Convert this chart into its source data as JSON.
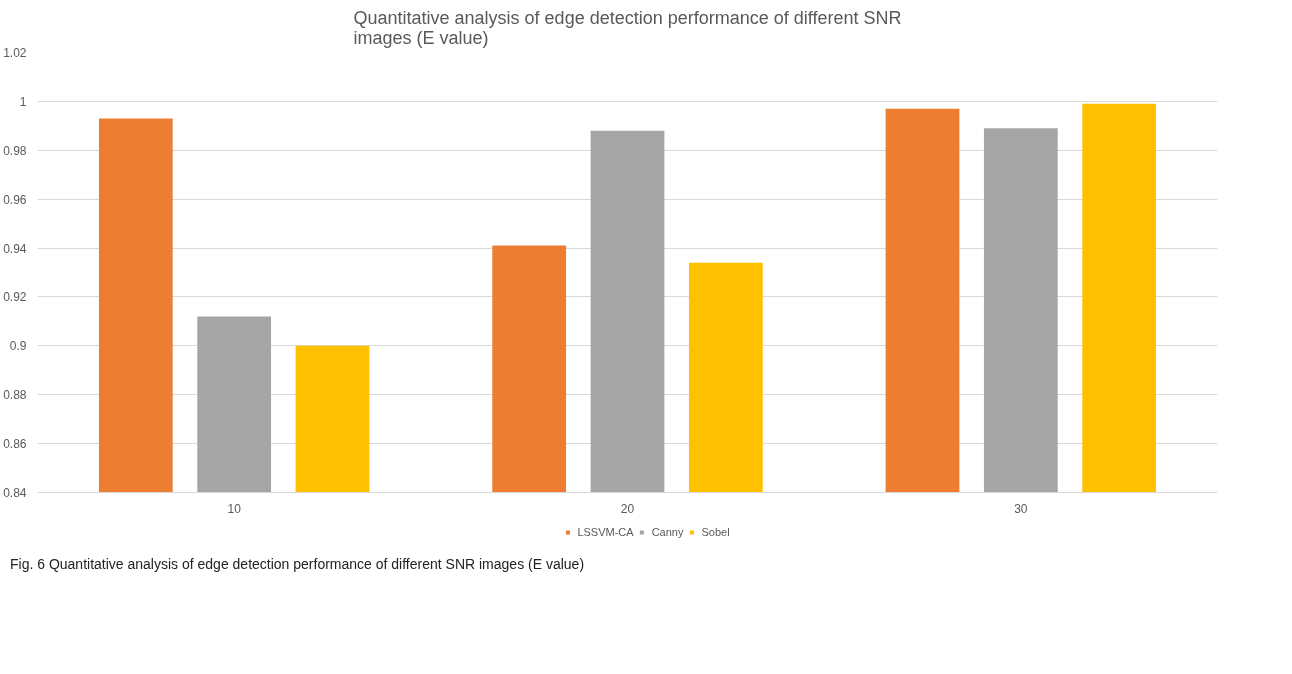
{
  "chart_data": {
    "type": "bar",
    "title": "Quantitative analysis of edge detection performance of different SNR\nimages (E value)",
    "categories": [
      "10",
      "20",
      "30"
    ],
    "series": [
      {
        "name": "LSSVM-CA",
        "color": "#ed7d31",
        "values": [
          0.993,
          0.941,
          0.997
        ]
      },
      {
        "name": "Canny",
        "color": "#a5a5a5",
        "values": [
          0.912,
          0.988,
          0.989
        ]
      },
      {
        "name": "Sobel",
        "color": "#ffc000",
        "values": [
          0.9,
          0.934,
          0.999
        ]
      }
    ],
    "ylim": [
      0.84,
      1.02
    ],
    "yticks": [
      0.84,
      0.86,
      0.88,
      0.9,
      0.92,
      0.94,
      0.96,
      0.98,
      1,
      1.02
    ],
    "grid": "y",
    "legend": "bottom",
    "annotations": [
      "Fig. 6 Quantitative analysis of edge detection performance of different SNR images (E value)"
    ]
  }
}
